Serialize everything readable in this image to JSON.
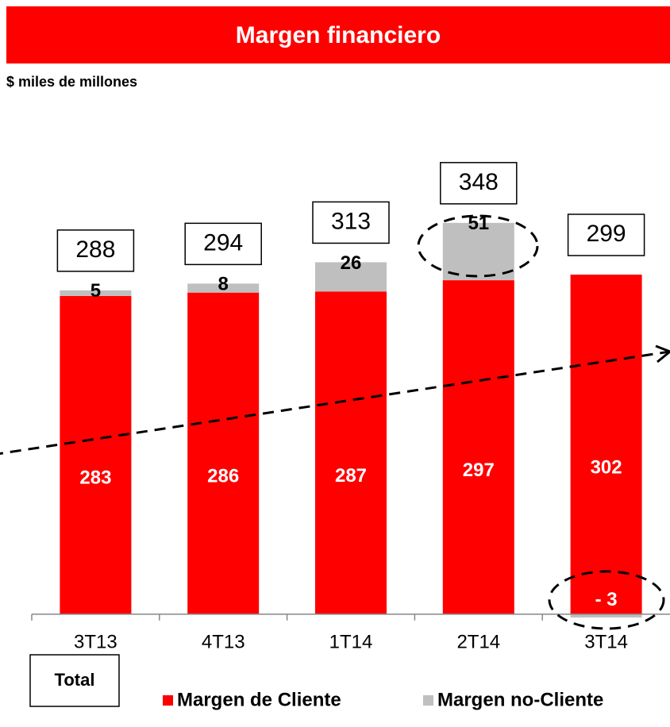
{
  "chart_data": {
    "type": "stacked_bar",
    "title": "Margen financiero",
    "subtitle": "$ miles de millones",
    "categories": [
      "3T13",
      "4T13",
      "1T14",
      "2T14",
      "3T14"
    ],
    "series": [
      {
        "name": "Margen de Cliente",
        "color": "#ff0000",
        "values": [
          283,
          286,
          287,
          297,
          302
        ]
      },
      {
        "name": "Margen no-Cliente",
        "color": "#bfbfbf",
        "values": [
          5,
          8,
          26,
          51,
          -3
        ],
        "value_labels": [
          "5",
          "8",
          "26",
          "51",
          "- 3"
        ]
      }
    ],
    "totals": [
      288,
      294,
      313,
      348,
      299
    ],
    "total_label": "Total",
    "ylim": [
      -10,
      410
    ]
  }
}
